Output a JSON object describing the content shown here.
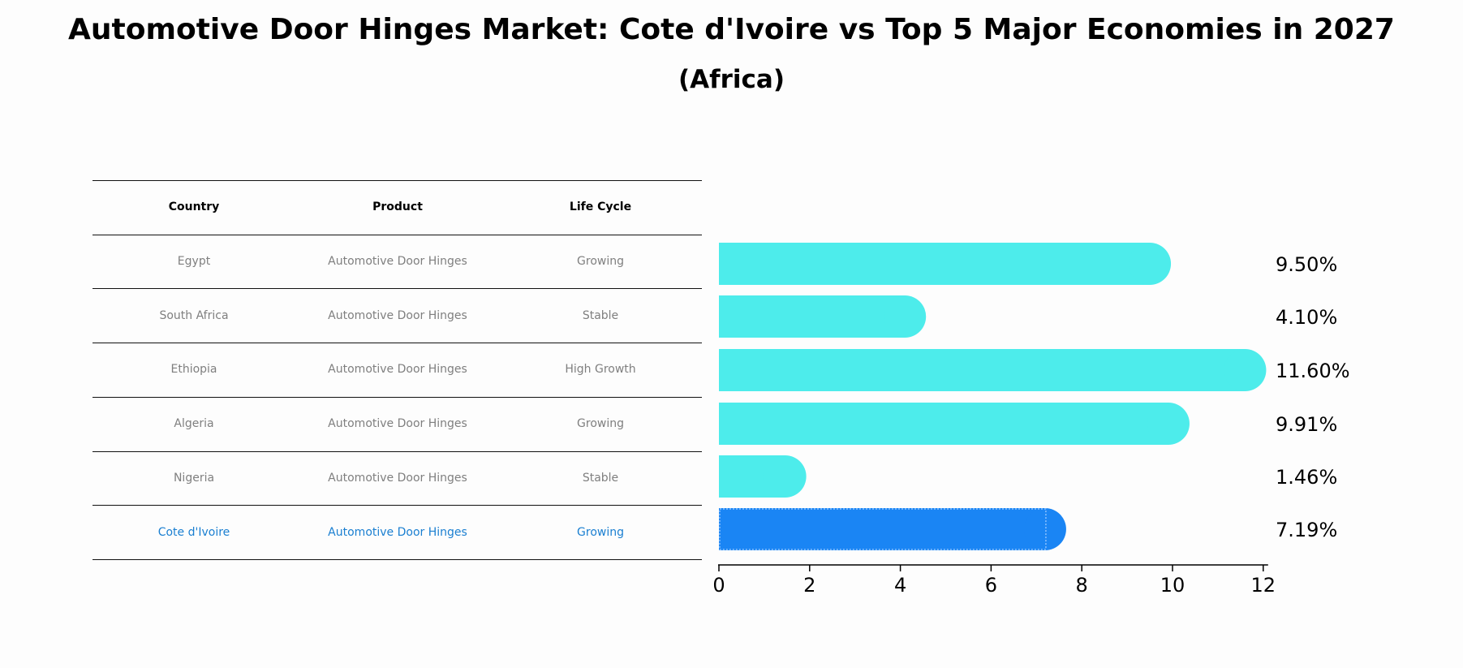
{
  "title": "Automotive Door Hinges Market: Cote d'Ivoire vs Top 5 Major Economies in 2027",
  "subtitle": "(Africa)",
  "table": {
    "headers": [
      "Country",
      "Product",
      "Life Cycle"
    ],
    "rows": [
      [
        "Egypt",
        "Automotive Door Hinges",
        "Growing"
      ],
      [
        "South Africa",
        "Automotive Door Hinges",
        "Stable"
      ],
      [
        "Ethiopia",
        "Automotive Door Hinges",
        "High Growth"
      ],
      [
        "Algeria",
        "Automotive Door Hinges",
        "Growing"
      ],
      [
        "Nigeria",
        "Automotive Door Hinges",
        "Stable"
      ],
      [
        "Cote d'Ivoire",
        "Automotive Door Hinges",
        "Growing"
      ]
    ],
    "highlight_row": 5
  },
  "chart_data": {
    "type": "bar",
    "orientation": "horizontal",
    "categories": [
      "Egypt",
      "South Africa",
      "Ethiopia",
      "Algeria",
      "Nigeria",
      "Cote d'Ivoire"
    ],
    "values": [
      9.5,
      4.1,
      11.6,
      9.91,
      1.46,
      7.19
    ],
    "value_labels": [
      "9.50%",
      "4.10%",
      "11.60%",
      "9.91%",
      "1.46%",
      "7.19%"
    ],
    "xlim": [
      0,
      12
    ],
    "xticks": [
      0,
      2,
      4,
      6,
      8,
      10,
      12
    ],
    "colors": [
      "#4deceb",
      "#4deceb",
      "#4deceb",
      "#4deceb",
      "#4deceb",
      "#1a85f4"
    ],
    "highlight_index": 5
  }
}
